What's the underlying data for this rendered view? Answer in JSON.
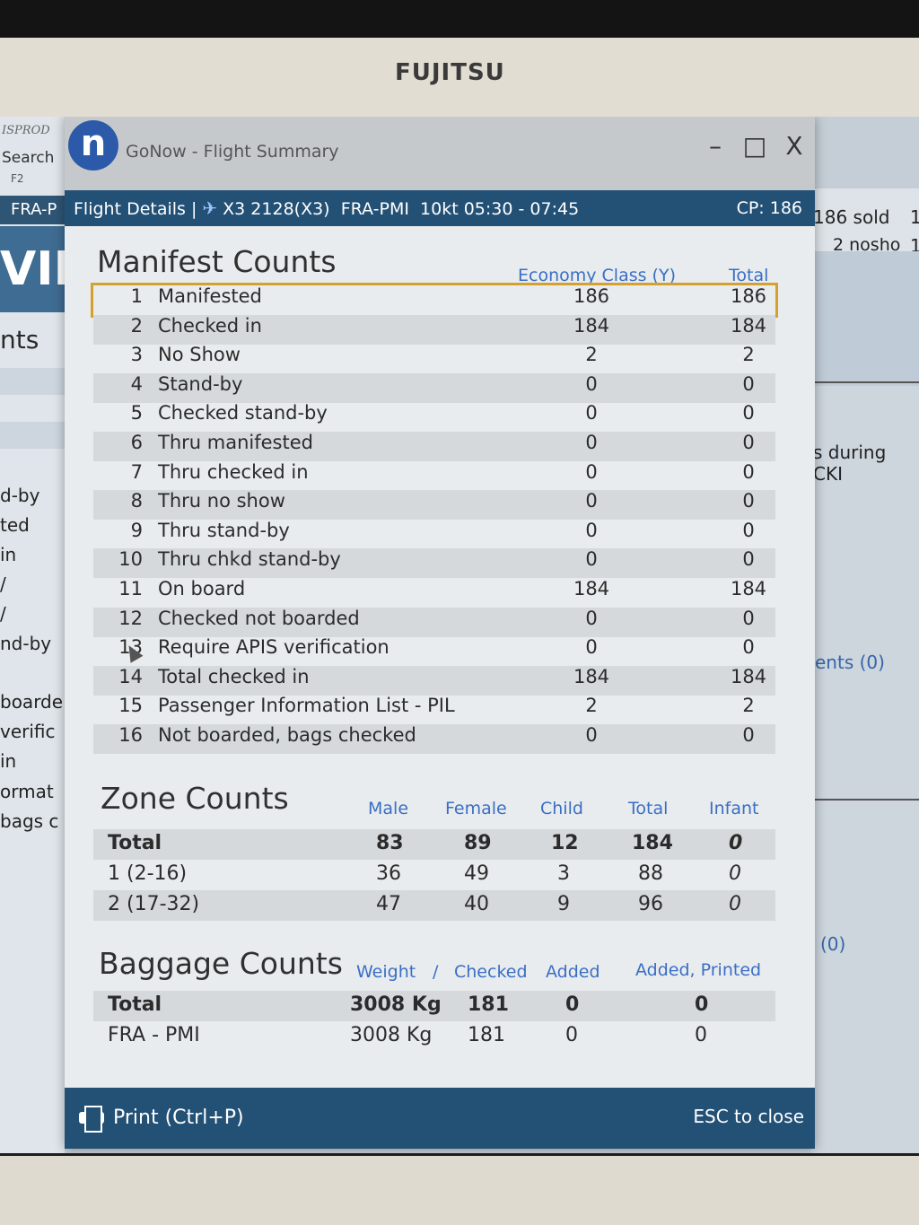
{
  "bezel": {
    "brand": "FUJITSU"
  },
  "background_app": {
    "env": "ISPROD",
    "search_label": "Search",
    "f2_label": "F2",
    "route_fragment": "FRA-P",
    "big_fragment": "VIE",
    "counts_fragment": "nts",
    "left_fragments": [
      "d-by",
      "ted",
      "in",
      "/",
      "/",
      "nd-by",
      "boarde",
      "verific",
      "in",
      "ormat",
      "bags c"
    ],
    "sold": "186 sold",
    "sold_extra": "1",
    "noshow": "2 nosho",
    "noshow_extra": "1",
    "during": "s during CKI",
    "ents": "ents (0)",
    "zero": "(0)"
  },
  "window": {
    "title": "GoNow - Flight Summary",
    "logo": "n",
    "minimize": "–",
    "maximize": "□",
    "close": "X"
  },
  "flight_bar": {
    "label": "Flight Details |",
    "flight": "X3 2128(X3)",
    "route": "FRA-PMI",
    "date_time": "10kt 05:30 - 07:45",
    "cp": "CP: 186"
  },
  "manifest": {
    "title": "Manifest Counts",
    "col_economy": "Economy Class (Y)",
    "col_total": "Total",
    "rows": [
      {
        "num": "1",
        "label": "Manifested",
        "economy": "186",
        "total": "186"
      },
      {
        "num": "2",
        "label": "Checked in",
        "economy": "184",
        "total": "184"
      },
      {
        "num": "3",
        "label": "No Show",
        "economy": "2",
        "total": "2"
      },
      {
        "num": "4",
        "label": "Stand-by",
        "economy": "0",
        "total": "0"
      },
      {
        "num": "5",
        "label": "Checked stand-by",
        "economy": "0",
        "total": "0"
      },
      {
        "num": "6",
        "label": "Thru manifested",
        "economy": "0",
        "total": "0"
      },
      {
        "num": "7",
        "label": "Thru checked in",
        "economy": "0",
        "total": "0"
      },
      {
        "num": "8",
        "label": "Thru no show",
        "economy": "0",
        "total": "0"
      },
      {
        "num": "9",
        "label": "Thru stand-by",
        "economy": "0",
        "total": "0"
      },
      {
        "num": "10",
        "label": "Thru chkd stand-by",
        "economy": "0",
        "total": "0"
      },
      {
        "num": "11",
        "label": "On board",
        "economy": "184",
        "total": "184"
      },
      {
        "num": "12",
        "label": "Checked not boarded",
        "economy": "0",
        "total": "0"
      },
      {
        "num": "13",
        "label": "Require APIS verification",
        "economy": "0",
        "total": "0"
      },
      {
        "num": "14",
        "label": "Total checked in",
        "economy": "184",
        "total": "184"
      },
      {
        "num": "15",
        "label": "Passenger Information List - PIL",
        "economy": "2",
        "total": "2"
      },
      {
        "num": "16",
        "label": "Not boarded, bags checked",
        "economy": "0",
        "total": "0"
      }
    ]
  },
  "zone": {
    "title": "Zone Counts",
    "headers": [
      "Male",
      "Female",
      "Child",
      "Total",
      "Infant"
    ],
    "rows": [
      {
        "label": "Total",
        "male": "83",
        "female": "89",
        "child": "12",
        "total": "184",
        "infant": "0"
      },
      {
        "label": "1 (2-16)",
        "male": "36",
        "female": "49",
        "child": "3",
        "total": "88",
        "infant": "0"
      },
      {
        "label": "2 (17-32)",
        "male": "47",
        "female": "40",
        "child": "9",
        "total": "96",
        "infant": "0"
      }
    ]
  },
  "baggage": {
    "title": "Baggage Counts",
    "headers": {
      "weight": "Weight",
      "slash": "/",
      "checked": "Checked",
      "added": "Added",
      "added_printed": "Added, Printed"
    },
    "rows": [
      {
        "label": "Total",
        "weight": "3008 Kg",
        "checked": "181",
        "added": "0",
        "added_printed": "0"
      },
      {
        "label": "FRA - PMI",
        "weight": "3008 Kg",
        "checked": "181",
        "added": "0",
        "added_printed": "0"
      }
    ]
  },
  "footer": {
    "print_label": "Print (Ctrl+P)",
    "esc_label": "ESC to close"
  },
  "colors": {
    "header_bar": "#235075",
    "column_header": "#3a6ec4",
    "highlight": "#d3a12c"
  }
}
